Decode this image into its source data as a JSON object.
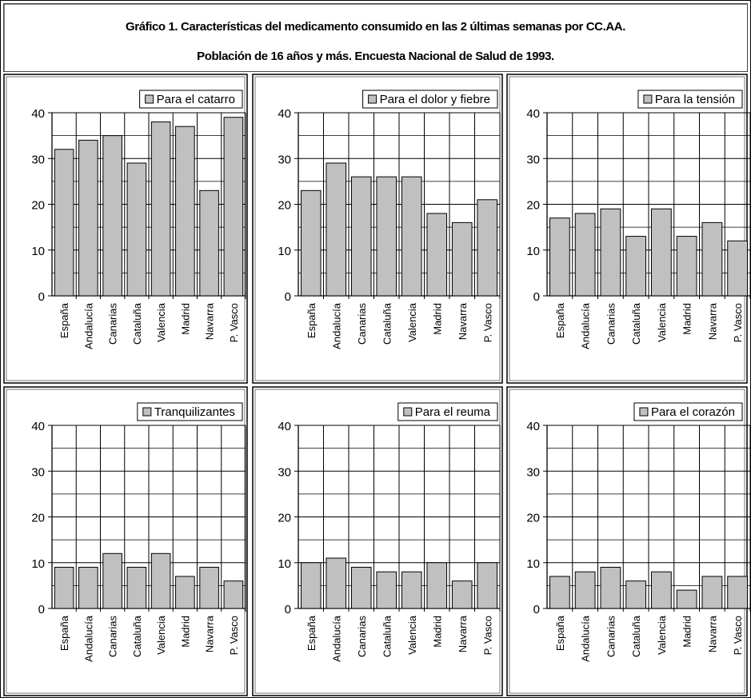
{
  "title": {
    "line1": "Gráfico 1. Características del medicamento consumido en las 2 últimas semanas por CC.AA.",
    "line2": "Población de 16 años y más. Encuesta Nacional de Salud de 1993."
  },
  "colors": {
    "bar_fill": "#c0c0c0",
    "bar_stroke": "#000000",
    "grid": "#000000",
    "background": "#ffffff"
  },
  "chart_data": [
    {
      "type": "bar",
      "title": "",
      "legend": "Para el catarro",
      "legend_position": "top-right",
      "categories": [
        "España",
        "Andalucía",
        "Canarias",
        "Cataluña",
        "Valencia",
        "Madrid",
        "Navarra",
        "P. Vasco"
      ],
      "values": [
        32,
        34,
        35,
        29,
        38,
        37,
        23,
        39
      ],
      "ylim": [
        0,
        40
      ],
      "yticks": [
        "0",
        "10",
        "20",
        "30",
        "40"
      ],
      "grid": true
    },
    {
      "type": "bar",
      "title": "",
      "legend": "Para el dolor y fiebre",
      "legend_position": "top-right",
      "categories": [
        "España",
        "Andalucía",
        "Canarias",
        "Cataluña",
        "Valencia",
        "Madrid",
        "Navarra",
        "P. Vasco"
      ],
      "values": [
        23,
        29,
        26,
        26,
        26,
        18,
        16,
        21
      ],
      "ylim": [
        0,
        40
      ],
      "yticks": [
        "0",
        "10",
        "20",
        "30",
        "40"
      ],
      "grid": true
    },
    {
      "type": "bar",
      "title": "",
      "legend": "Para la tensión",
      "legend_position": "top-right",
      "categories": [
        "España",
        "Andalucía",
        "Canarias",
        "Cataluña",
        "Valencia",
        "Madrid",
        "Navarra",
        "P. Vasco"
      ],
      "values": [
        17,
        18,
        19,
        13,
        19,
        13,
        16,
        12
      ],
      "ylim": [
        0,
        40
      ],
      "yticks": [
        "0",
        "10",
        "20",
        "30",
        "40"
      ],
      "grid": true
    },
    {
      "type": "bar",
      "title": "",
      "legend": "Tranquilizantes",
      "legend_position": "top-right",
      "categories": [
        "España",
        "Andalucía",
        "Canarias",
        "Cataluña",
        "Valencia",
        "Madrid",
        "Navarra",
        "P. Vasco"
      ],
      "values": [
        9,
        9,
        12,
        9,
        12,
        7,
        9,
        6
      ],
      "ylim": [
        0,
        40
      ],
      "yticks": [
        "0",
        "10",
        "20",
        "30",
        "40"
      ],
      "grid": true
    },
    {
      "type": "bar",
      "title": "",
      "legend": "Para el reuma",
      "legend_position": "top-right",
      "categories": [
        "España",
        "Andalucía",
        "Canarias",
        "Cataluña",
        "Valencia",
        "Madrid",
        "Navarra",
        "P. Vasco"
      ],
      "values": [
        10,
        11,
        9,
        8,
        8,
        10,
        6,
        10
      ],
      "ylim": [
        0,
        40
      ],
      "yticks": [
        "0",
        "10",
        "20",
        "30",
        "40"
      ],
      "grid": true
    },
    {
      "type": "bar",
      "title": "",
      "legend": "Para el corazón",
      "legend_position": "top-right",
      "categories": [
        "España",
        "Andalucía",
        "Canarias",
        "Cataluña",
        "Valencia",
        "Madrid",
        "Navarra",
        "P. Vasco"
      ],
      "values": [
        7,
        8,
        9,
        6,
        8,
        4,
        7,
        7
      ],
      "ylim": [
        0,
        40
      ],
      "yticks": [
        "0",
        "10",
        "20",
        "30",
        "40"
      ],
      "grid": true
    }
  ]
}
